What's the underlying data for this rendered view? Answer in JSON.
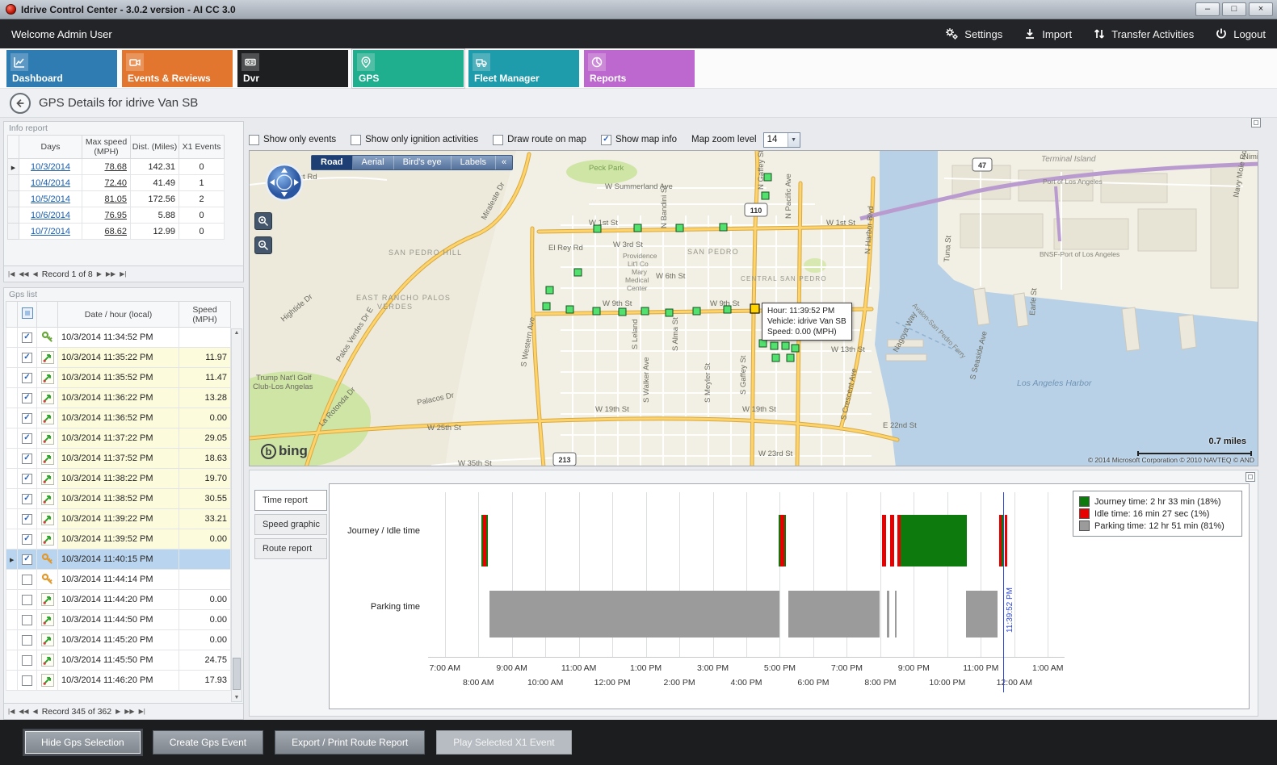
{
  "window": {
    "title": "Idrive Control Center - 3.0.2 version - AI CC 3.0",
    "minimize": "–",
    "maximize": "□",
    "close": "×"
  },
  "topbar": {
    "welcome": "Welcome Admin User",
    "settings": "Settings",
    "import": "Import",
    "transfer": "Transfer Activities",
    "logout": "Logout"
  },
  "nav": {
    "dashboard": "Dashboard",
    "events": "Events & Reviews",
    "dvr": "Dvr",
    "gps": "GPS",
    "fleet": "Fleet Manager",
    "reports": "Reports"
  },
  "page": {
    "title": "GPS Details for idrive Van SB"
  },
  "info_report": {
    "title": "Info report",
    "col_days": "Days",
    "col_max_speed": "Max speed (MPH)",
    "col_dist": "Dist. (Miles)",
    "col_x1": "X1 Events",
    "rows": [
      {
        "day": "10/3/2014",
        "max_speed": "78.68",
        "dist": "142.31",
        "x1": "0",
        "selected": true
      },
      {
        "day": "10/4/2014",
        "max_speed": "72.40",
        "dist": "41.49",
        "x1": "1",
        "selected": false
      },
      {
        "day": "10/5/2014",
        "max_speed": "81.05",
        "dist": "172.56",
        "x1": "2",
        "selected": false
      },
      {
        "day": "10/6/2014",
        "max_speed": "76.95",
        "dist": "5.88",
        "x1": "0",
        "selected": false
      },
      {
        "day": "10/7/2014",
        "max_speed": "68.62",
        "dist": "12.99",
        "x1": "0",
        "selected": false
      }
    ],
    "pager": "Record 1 of 8"
  },
  "gps_list": {
    "title": "Gps list",
    "col_date": "Date / hour (local)",
    "col_speed": "Speed (MPH)",
    "rows": [
      {
        "checked": true,
        "icon": "key-on",
        "datetime": "10/3/2014 11:34:52 PM",
        "speed": "",
        "selected": false
      },
      {
        "checked": true,
        "icon": "gps",
        "datetime": "10/3/2014 11:35:22 PM",
        "speed": "11.97",
        "selected": false
      },
      {
        "checked": true,
        "icon": "gps",
        "datetime": "10/3/2014 11:35:52 PM",
        "speed": "11.47",
        "selected": false
      },
      {
        "checked": true,
        "icon": "gps",
        "datetime": "10/3/2014 11:36:22 PM",
        "speed": "13.28",
        "selected": false
      },
      {
        "checked": true,
        "icon": "gps",
        "datetime": "10/3/2014 11:36:52 PM",
        "speed": "0.00",
        "selected": false
      },
      {
        "checked": true,
        "icon": "gps",
        "datetime": "10/3/2014 11:37:22 PM",
        "speed": "29.05",
        "selected": false
      },
      {
        "checked": true,
        "icon": "gps",
        "datetime": "10/3/2014 11:37:52 PM",
        "speed": "18.63",
        "selected": false
      },
      {
        "checked": true,
        "icon": "gps",
        "datetime": "10/3/2014 11:38:22 PM",
        "speed": "19.70",
        "selected": false
      },
      {
        "checked": true,
        "icon": "gps",
        "datetime": "10/3/2014 11:38:52 PM",
        "speed": "30.55",
        "selected": false
      },
      {
        "checked": true,
        "icon": "gps",
        "datetime": "10/3/2014 11:39:22 PM",
        "speed": "33.21",
        "selected": false
      },
      {
        "checked": true,
        "icon": "gps",
        "datetime": "10/3/2014 11:39:52 PM",
        "speed": "0.00",
        "selected": false
      },
      {
        "checked": true,
        "icon": "key-off",
        "datetime": "10/3/2014 11:40:15 PM",
        "speed": "",
        "selected": true
      },
      {
        "checked": false,
        "icon": "key-off",
        "datetime": "10/3/2014 11:44:14 PM",
        "speed": "",
        "selected": false
      },
      {
        "checked": false,
        "icon": "gps",
        "datetime": "10/3/2014 11:44:20 PM",
        "speed": "0.00",
        "selected": false
      },
      {
        "checked": false,
        "icon": "gps",
        "datetime": "10/3/2014 11:44:50 PM",
        "speed": "0.00",
        "selected": false
      },
      {
        "checked": false,
        "icon": "gps",
        "datetime": "10/3/2014 11:45:20 PM",
        "speed": "0.00",
        "selected": false
      },
      {
        "checked": false,
        "icon": "gps",
        "datetime": "10/3/2014 11:45:50 PM",
        "speed": "24.75",
        "selected": false
      },
      {
        "checked": false,
        "icon": "gps",
        "datetime": "10/3/2014 11:46:20 PM",
        "speed": "17.93",
        "selected": false
      }
    ],
    "pager": "Record 345 of 362"
  },
  "map": {
    "options": {
      "events": {
        "label": "Show only events",
        "checked": false
      },
      "ignition": {
        "label": "Show only ignition activities",
        "checked": false
      },
      "route": {
        "label": "Draw route on map",
        "checked": false
      },
      "info": {
        "label": "Show map info",
        "checked": true
      },
      "zoom_label": "Map zoom level",
      "zoom_value": "14"
    },
    "view_tabs": {
      "road": "Road",
      "aerial": "Aerial",
      "birdseye": "Bird's eye",
      "labels": "Labels",
      "collapse": "«"
    },
    "tooltip": {
      "hour": "Hour: 11:39:52 PM",
      "vehicle": "Vehicle: idrive Van SB",
      "speed": "Speed: 0.00 (MPH)"
    },
    "brand": "bing",
    "scale": "0.7 miles",
    "copyright": "© 2014 Microsoft Corporation   © 2010 NAVTEQ   © AND",
    "labels": {
      "peck_park": "Peck Park",
      "summerland": "W Summerland Ave",
      "crest_rd": "Crest Rd",
      "miraleste": "Miraleste Dr",
      "bandini": "N Bandini St",
      "w1st_a": "W 1st St",
      "w1st_b": "W 1st St",
      "san_pedro_hill": "SAN PEDRO HILL",
      "el_rey": "El Rey Rd",
      "w3rd": "W 3rd St",
      "prov1": "Providence",
      "prov2": "Lit'l Co",
      "prov3": "Mary",
      "prov4": "Medical",
      "prov5": "Center",
      "san_pedro": "SAN PEDRO",
      "w6th": "W 6th St",
      "central_sp": "CENTRAL SAN PEDRO",
      "east_rancho1": "EAST RANCHO PALOS",
      "east_rancho2": "VERDES",
      "w9th_a": "W 9th St",
      "w9th_b": "W 9th St",
      "w13th": "W 13th St",
      "hightide": "Hightide Dr",
      "pv_dr_e": "Palos Verdes Dr E",
      "trump1": "Trump Nat'l Golf",
      "trump2": "Club-Los Angelas",
      "palacos": "Palacos Dr",
      "w25th": "W 25th St",
      "la_rotonda": "La Rotonda Dr",
      "w19th_a": "W 19th St",
      "w19th_b": "W 19th St",
      "western": "S Western Ave",
      "leland": "S Leland",
      "alma": "S Alma St",
      "walker": "S Walker Ave",
      "meyler": "S Meyler St",
      "gaffey_s": "S Gaffey St",
      "gaffey_n": "N Gaffey St",
      "pacific": "N Pacific Ave",
      "harbor_blvd": "N Harbor Blvd",
      "crescent": "S Crescent Ave",
      "e22nd": "E 22nd St",
      "w23rd": "W 23rd St",
      "w35th": "W 35th St",
      "terminal_island": "Terminal Island",
      "port_la": "Port of Los Angeles",
      "bnsf": "BNSF-Port of Los Angeles",
      "la_harbor": "Los Angeles Harbor",
      "navy_mole": "Navy Mole Rd",
      "nimitz": "Nimitz",
      "tuna": "Tuna St",
      "earle": "Earle St",
      "nagoya": "Nagoya Way",
      "avalon_ferry": "Avalon-San Pedro Ferry",
      "seaside": "S Seaside Ave",
      "shield_110": "110",
      "shield_213": "213",
      "shield_47": "47"
    }
  },
  "time_report": {
    "tabs": {
      "time": "Time report",
      "speed": "Speed graphic",
      "route": "Route report"
    }
  },
  "chart_data": {
    "type": "timeline",
    "title": "Time report",
    "x_axis": {
      "t_min": 6.5,
      "t_max": 25.5,
      "ticks": [
        {
          "t": 7,
          "label": "7:00 AM"
        },
        {
          "t": 8,
          "label": "8:00 AM"
        },
        {
          "t": 9,
          "label": "9:00 AM"
        },
        {
          "t": 10,
          "label": "10:00 AM"
        },
        {
          "t": 11,
          "label": "11:00 AM"
        },
        {
          "t": 12,
          "label": "12:00 PM"
        },
        {
          "t": 13,
          "label": "1:00 PM"
        },
        {
          "t": 14,
          "label": "2:00 PM"
        },
        {
          "t": 15,
          "label": "3:00 PM"
        },
        {
          "t": 16,
          "label": "4:00 PM"
        },
        {
          "t": 17,
          "label": "5:00 PM"
        },
        {
          "t": 18,
          "label": "6:00 PM"
        },
        {
          "t": 19,
          "label": "7:00 PM"
        },
        {
          "t": 20,
          "label": "8:00 PM"
        },
        {
          "t": 21,
          "label": "9:00 PM"
        },
        {
          "t": 22,
          "label": "10:00 PM"
        },
        {
          "t": 23,
          "label": "11:00 PM"
        },
        {
          "t": 24,
          "label": "12:00 AM"
        },
        {
          "t": 25,
          "label": "1:00 AM"
        }
      ]
    },
    "rows": [
      {
        "label": "Journey / Idle time",
        "segments": [
          {
            "t0": 8.08,
            "t1": 8.13,
            "kind": "journey"
          },
          {
            "t0": 8.13,
            "t1": 8.23,
            "kind": "idle"
          },
          {
            "t0": 8.23,
            "t1": 8.28,
            "kind": "journey"
          },
          {
            "t0": 16.97,
            "t1": 17.02,
            "kind": "journey"
          },
          {
            "t0": 17.02,
            "t1": 17.13,
            "kind": "idle"
          },
          {
            "t0": 17.13,
            "t1": 17.18,
            "kind": "journey"
          },
          {
            "t0": 20.05,
            "t1": 20.18,
            "kind": "idle"
          },
          {
            "t0": 20.3,
            "t1": 20.42,
            "kind": "idle"
          },
          {
            "t0": 20.5,
            "t1": 20.6,
            "kind": "idle"
          },
          {
            "t0": 20.6,
            "t1": 22.58,
            "kind": "journey"
          },
          {
            "t0": 23.55,
            "t1": 23.62,
            "kind": "idle"
          },
          {
            "t0": 23.62,
            "t1": 23.7,
            "kind": "journey"
          },
          {
            "t0": 23.72,
            "t1": 23.8,
            "kind": "idle"
          }
        ]
      },
      {
        "label": "Parking time",
        "segments": [
          {
            "t0": 8.33,
            "t1": 17.0,
            "kind": "parking"
          },
          {
            "t0": 17.25,
            "t1": 19.98,
            "kind": "parking"
          },
          {
            "t0": 20.2,
            "t1": 20.27,
            "kind": "parking"
          },
          {
            "t0": 20.43,
            "t1": 20.48,
            "kind": "parking"
          },
          {
            "t0": 22.55,
            "t1": 23.5,
            "kind": "parking"
          }
        ]
      }
    ],
    "legend": [
      {
        "color": "#0c7a0c",
        "label": "Journey time: 2 hr 33 min (18%)"
      },
      {
        "color": "#e60000",
        "label": "Idle time: 16 min 27 sec (1%)"
      },
      {
        "color": "#9b9b9b",
        "label": "Parking time: 12 hr 51 min (81%)"
      }
    ],
    "cursor": {
      "t": 23.664,
      "label": "11:39:52 PM"
    }
  },
  "footer": {
    "hide": "Hide Gps Selection",
    "create": "Create Gps Event",
    "export": "Export / Print Route Report",
    "play": "Play Selected X1 Event"
  }
}
